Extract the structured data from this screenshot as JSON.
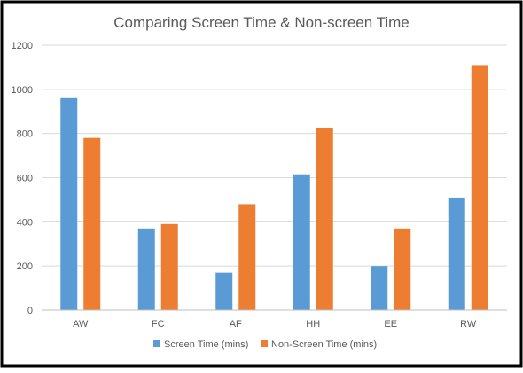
{
  "chart_data": {
    "type": "bar",
    "title": "Comparing Screen Time & Non-screen Time",
    "xlabel": "",
    "ylabel": "",
    "categories": [
      "AW",
      "FC",
      "AF",
      "HH",
      "EE",
      "RW"
    ],
    "series": [
      {
        "name": "Screen Time (mins)",
        "color": "#5b9bd5",
        "values": [
          960,
          370,
          170,
          615,
          200,
          510
        ]
      },
      {
        "name": "Non-Screen Time (mins)",
        "color": "#ed7d31",
        "values": [
          780,
          390,
          480,
          825,
          370,
          1110
        ]
      }
    ],
    "ylim": [
      0,
      1200
    ],
    "yticks": [
      0,
      200,
      400,
      600,
      800,
      1000,
      1200
    ],
    "grid": true,
    "legend_position": "bottom"
  },
  "colors": {
    "border": "#000000",
    "grid": "#d9d9d9",
    "axis": "#bfbfbf",
    "text": "#595959"
  }
}
